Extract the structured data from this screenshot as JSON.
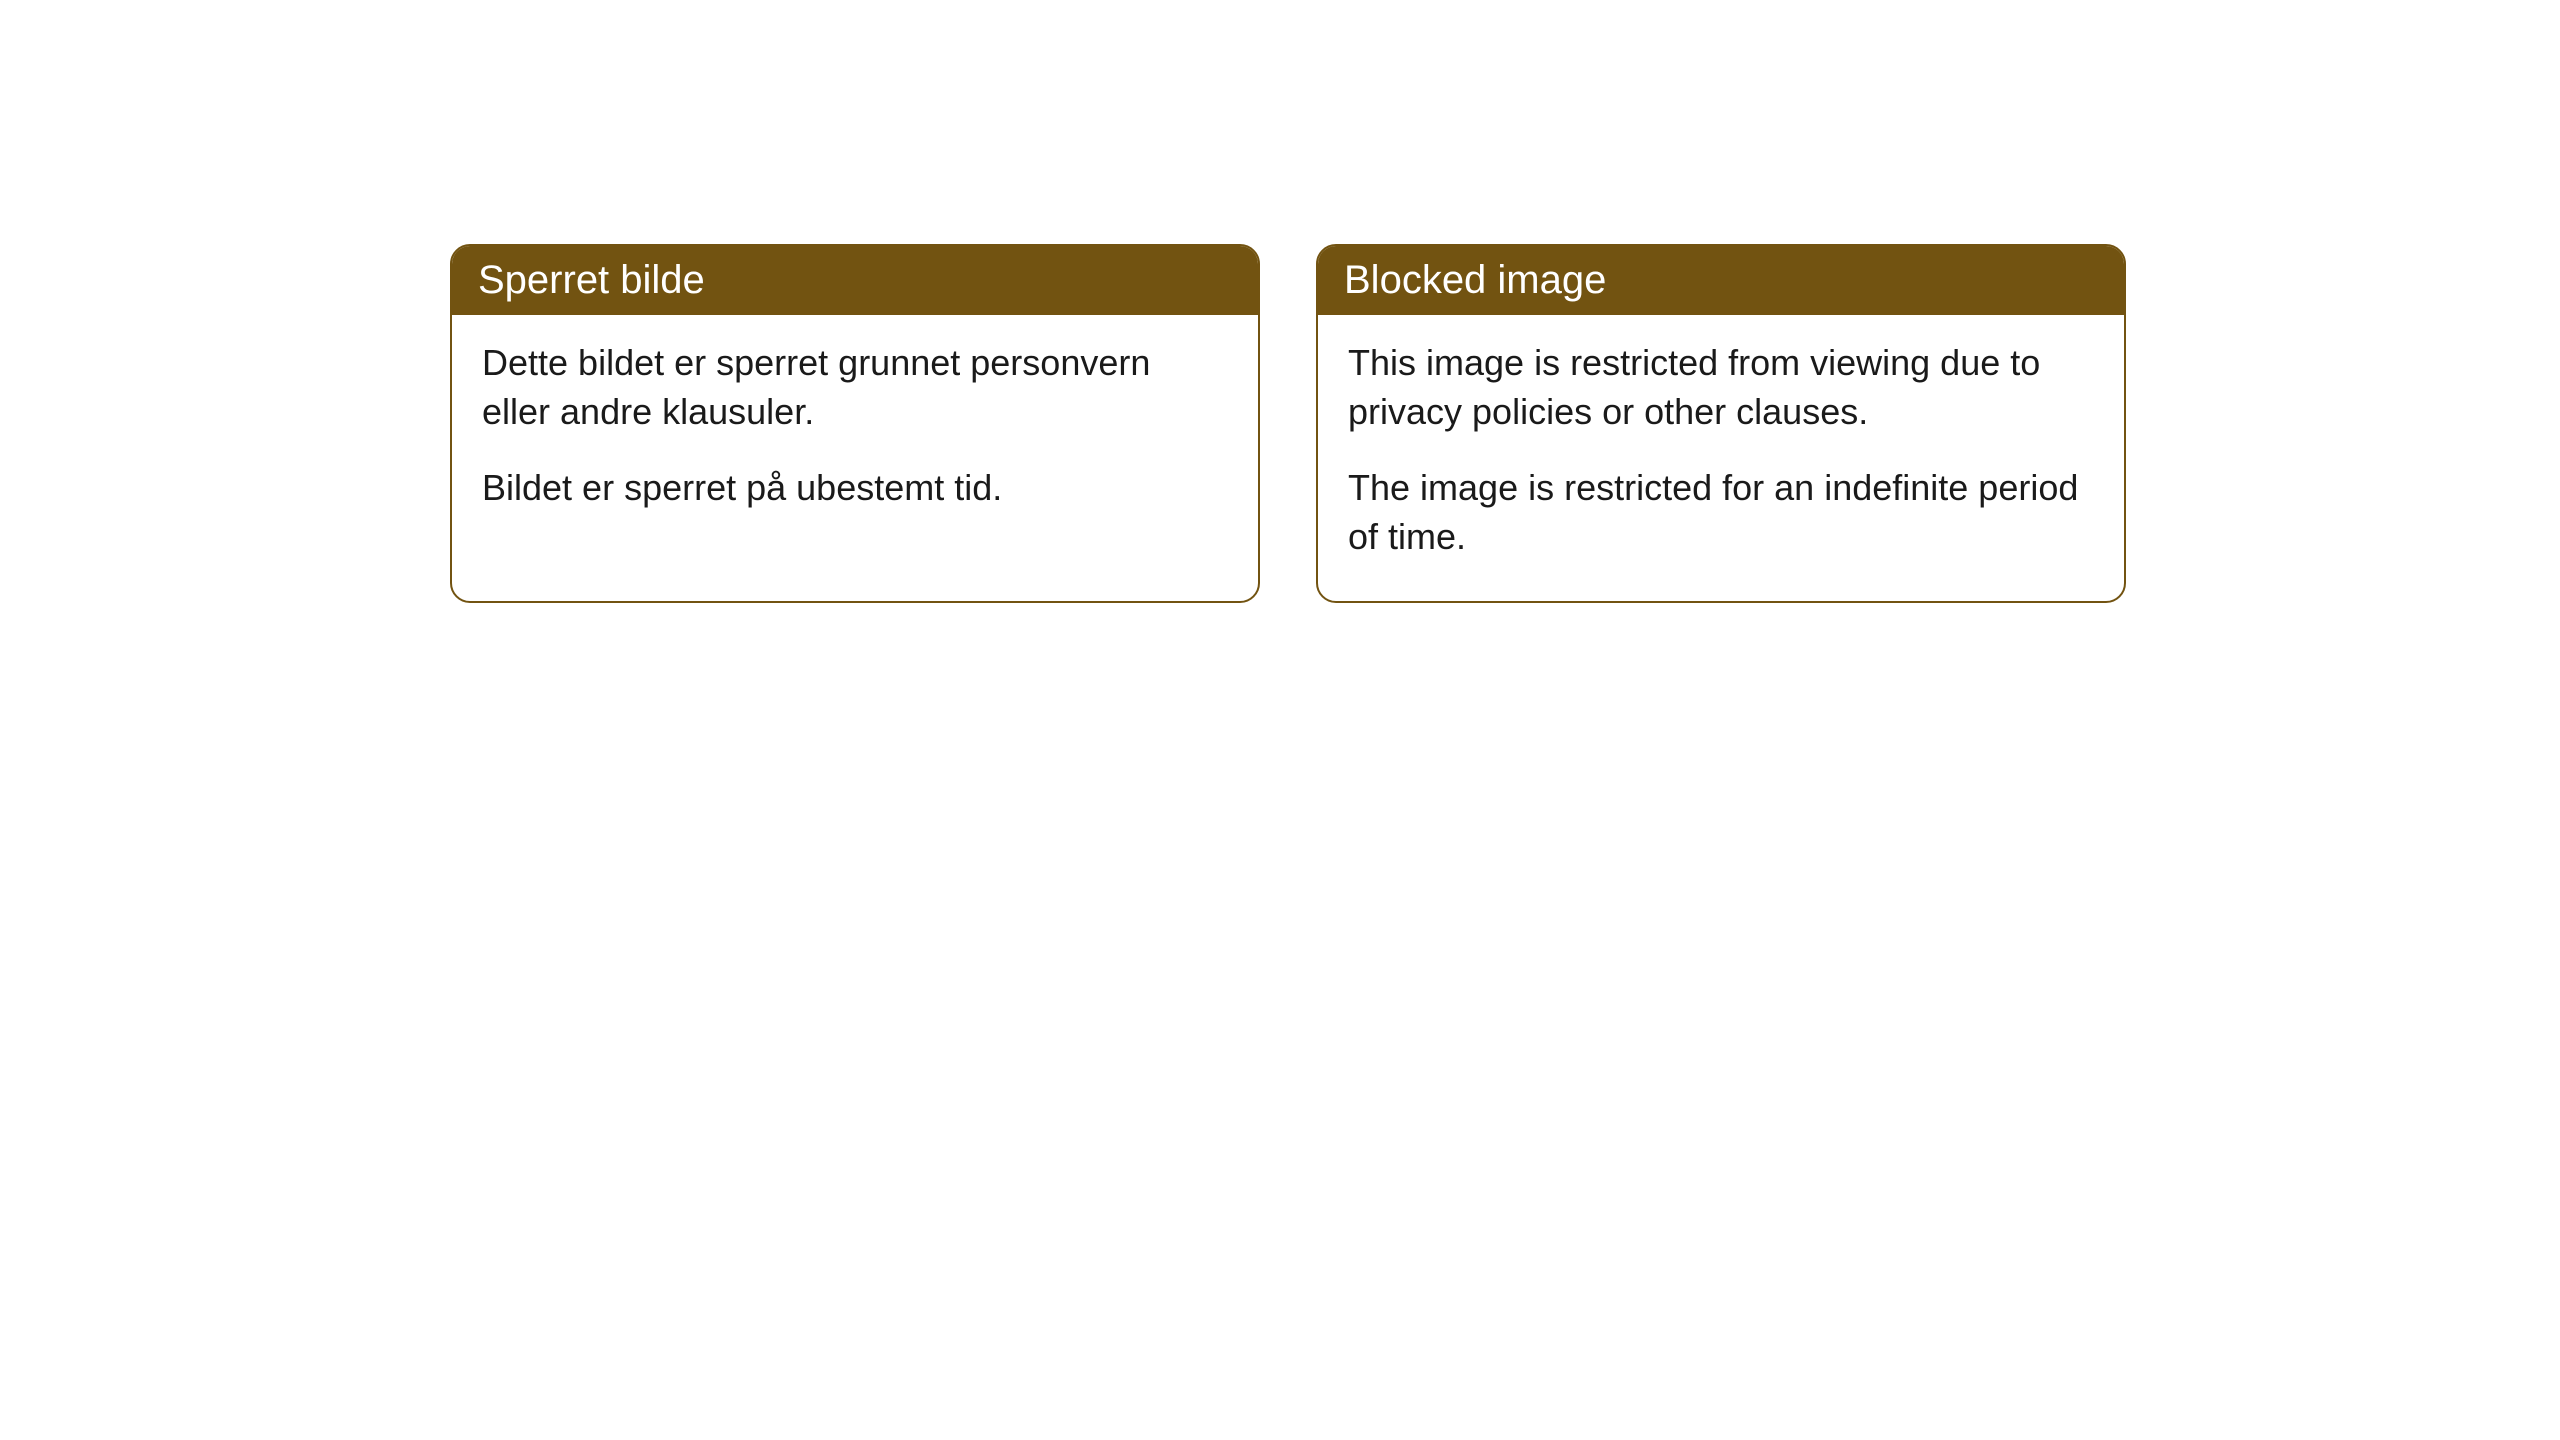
{
  "cards": [
    {
      "title": "Sperret bilde",
      "paragraph1": "Dette bildet er sperret grunnet personvern eller andre klausuler.",
      "paragraph2": "Bildet er sperret på ubestemt tid."
    },
    {
      "title": "Blocked image",
      "paragraph1": "This image is restricted from viewing due to privacy policies or other clauses.",
      "paragraph2": "The image is restricted for an indefinite period of time."
    }
  ],
  "style": {
    "header_background": "#725311",
    "header_text_color": "#ffffff",
    "border_color": "#725311",
    "body_text_color": "#1a1a1a",
    "page_background": "#ffffff",
    "border_radius": 20,
    "header_fontsize": 40,
    "body_fontsize": 36
  }
}
